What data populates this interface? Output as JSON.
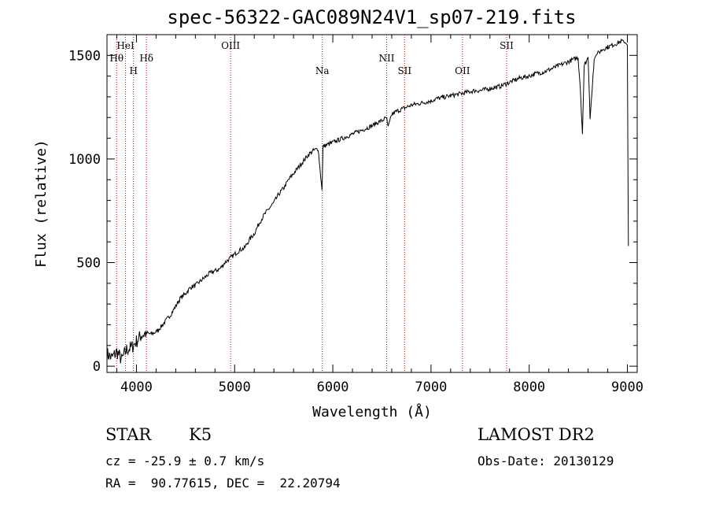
{
  "title": "spec-56322-GAC089N24V1_sp07-219.fits",
  "info": {
    "class": "STAR",
    "subclass": "K5",
    "survey": "LAMOST DR2",
    "cz": "cz = -25.9 ± 0.7 km/s",
    "obs_date": "Obs-Date: 20130129",
    "coords": "RA =  90.77615, DEC =  22.20794"
  },
  "chart_data": {
    "type": "line",
    "title": "spec-56322-GAC089N24V1_sp07-219.fits",
    "xlabel": "Wavelength (Å)",
    "ylabel": "Flux (relative)",
    "xlim": [
      3700,
      9100
    ],
    "ylim": [
      -30,
      1600
    ],
    "xticks": [
      4000,
      5000,
      6000,
      7000,
      8000,
      9000
    ],
    "yticks": [
      0,
      500,
      1000,
      1500
    ],
    "grid": false,
    "series": [
      {
        "color": "#000000",
        "x": [
          3700,
          3750,
          3800,
          3850,
          3900,
          3950,
          4000,
          4050,
          4100,
          4150,
          4200,
          4250,
          4300,
          4350,
          4400,
          4450,
          4500,
          4550,
          4600,
          4650,
          4700,
          4750,
          4800,
          4850,
          4900,
          4950,
          5000,
          5050,
          5100,
          5150,
          5200,
          5250,
          5300,
          5350,
          5400,
          5450,
          5500,
          5550,
          5600,
          5650,
          5700,
          5750,
          5800,
          5850,
          5890,
          5900,
          5950,
          6000,
          6050,
          6100,
          6150,
          6200,
          6250,
          6300,
          6350,
          6400,
          6450,
          6500,
          6550,
          6563,
          6600,
          6650,
          6700,
          6750,
          6800,
          6850,
          6900,
          6950,
          7000,
          7050,
          7100,
          7150,
          7200,
          7250,
          7300,
          7350,
          7400,
          7450,
          7500,
          7550,
          7600,
          7650,
          7700,
          7750,
          7800,
          7850,
          7900,
          7950,
          8000,
          8050,
          8100,
          8150,
          8200,
          8250,
          8300,
          8350,
          8400,
          8450,
          8498,
          8520,
          8542,
          8560,
          8600,
          8620,
          8662,
          8680,
          8700,
          8750,
          8800,
          8850,
          8900,
          8950,
          8980,
          9000,
          9010
        ],
        "y": [
          60,
          40,
          70,
          30,
          80,
          90,
          120,
          150,
          160,
          155,
          165,
          190,
          220,
          250,
          290,
          330,
          350,
          380,
          390,
          410,
          430,
          450,
          460,
          470,
          500,
          520,
          540,
          560,
          570,
          610,
          640,
          690,
          730,
          760,
          790,
          830,
          860,
          900,
          930,
          960,
          990,
          1020,
          1040,
          1050,
          850,
          1060,
          1070,
          1080,
          1090,
          1100,
          1110,
          1120,
          1130,
          1140,
          1150,
          1160,
          1175,
          1185,
          1200,
          1150,
          1215,
          1230,
          1240,
          1250,
          1260,
          1265,
          1270,
          1275,
          1280,
          1290,
          1295,
          1300,
          1305,
          1310,
          1315,
          1320,
          1325,
          1330,
          1330,
          1335,
          1340,
          1345,
          1350,
          1360,
          1370,
          1380,
          1390,
          1395,
          1400,
          1410,
          1415,
          1420,
          1430,
          1440,
          1450,
          1460,
          1470,
          1480,
          1490,
          1350,
          1120,
          1450,
          1490,
          1200,
          1480,
          1500,
          1510,
          1530,
          1540,
          1550,
          1560,
          1570,
          1560,
          1550,
          580
        ]
      }
    ],
    "lines": [
      {
        "label": "Hθ",
        "x": 3798,
        "label_row": 2
      },
      {
        "label": "HeI",
        "x": 3889,
        "label_row": 1
      },
      {
        "label": "H",
        "x": 3970,
        "label_row": 3
      },
      {
        "label": "Hδ",
        "x": 4102,
        "label_row": 2
      },
      {
        "label": "OIII",
        "x": 4959,
        "label_row": 1
      },
      {
        "label": "Na",
        "x": 5893,
        "label_row": 3
      },
      {
        "label": "NII",
        "x": 6548,
        "label_row": 2
      },
      {
        "label": "SII",
        "x": 6731,
        "label_row": 3
      },
      {
        "label": "OII",
        "x": 7320,
        "label_row": 3
      },
      {
        "label": "SII",
        "x": 7770,
        "label_row": 1
      }
    ],
    "line_color": "#cc0000"
  }
}
